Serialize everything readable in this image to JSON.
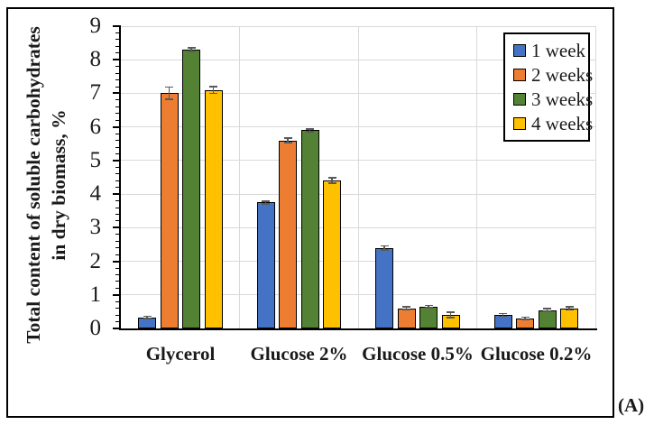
{
  "figure": {
    "panel_label": "(A)"
  },
  "chart_data": {
    "type": "bar",
    "title": "",
    "ylabel": "Total content of soluble carbohydrates in dry biomass, %",
    "ylabel_lines": [
      "Total content of soluble carbohydrates",
      "in dry biomass, %"
    ],
    "xlabel": "",
    "categories": [
      "Glycerol",
      "Glucose 2%",
      "Glucose 0.5%",
      "Glucose 0.2%"
    ],
    "series": [
      {
        "name": "1 week",
        "color": "#4472C4",
        "values": [
          0.33,
          3.75,
          2.4,
          0.4
        ],
        "errors": [
          0.03,
          0.04,
          0.06,
          0.04
        ]
      },
      {
        "name": "2 weeks",
        "color": "#ED7D31",
        "values": [
          7.0,
          5.6,
          0.6,
          0.3
        ],
        "errors": [
          0.18,
          0.07,
          0.04,
          0.03
        ]
      },
      {
        "name": "3 weeks",
        "color": "#548235",
        "values": [
          8.3,
          5.9,
          0.65,
          0.55
        ],
        "errors": [
          0.06,
          0.04,
          0.03,
          0.04
        ]
      },
      {
        "name": "4 weeks",
        "color": "#FFC000",
        "values": [
          7.1,
          4.4,
          0.4,
          0.6
        ],
        "errors": [
          0.1,
          0.08,
          0.08,
          0.05
        ]
      }
    ],
    "ylim": [
      0,
      9
    ],
    "ytick_step": 1,
    "minor_tick_step": 0.2,
    "grid": true,
    "legend_position": "top-right",
    "error_bar_color": "#595959",
    "gridline_color": "#D9D9D9"
  }
}
